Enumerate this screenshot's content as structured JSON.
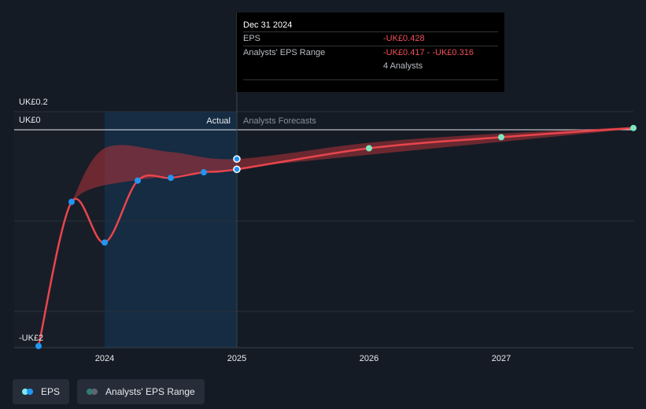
{
  "chart_data": {
    "type": "line",
    "y_tick_labels": [
      "UK£0.2",
      "UK£0",
      "-UK£2"
    ],
    "x_tick_labels": [
      "2024",
      "2025",
      "2026",
      "2027"
    ],
    "section_labels": {
      "actual": "Actual",
      "forecast": "Analysts Forecasts"
    },
    "eps_actual": [
      {
        "x": 2023.5,
        "y": -2.34
      },
      {
        "x": 2023.75,
        "y": -0.78
      },
      {
        "x": 2024.0,
        "y": -1.22
      },
      {
        "x": 2024.25,
        "y": -0.55
      },
      {
        "x": 2024.5,
        "y": -0.52
      },
      {
        "x": 2024.75,
        "y": -0.46
      },
      {
        "x": 2025.0,
        "y": -0.428
      }
    ],
    "eps_forecast": [
      {
        "x": 2025.0,
        "y": -0.428
      },
      {
        "x": 2026.0,
        "y": -0.2
      },
      {
        "x": 2027.0,
        "y": -0.08
      },
      {
        "x": 2028.0,
        "y": 0.02
      }
    ],
    "range_low": [
      {
        "x": 2023.75,
        "y": -0.78
      },
      {
        "x": 2024.0,
        "y": -0.6
      },
      {
        "x": 2025.0,
        "y": -0.417
      },
      {
        "x": 2026.0,
        "y": -0.27
      },
      {
        "x": 2027.0,
        "y": -0.13
      },
      {
        "x": 2028.0,
        "y": 0.01
      }
    ],
    "range_high": [
      {
        "x": 2024.0,
        "y": -0.2
      },
      {
        "x": 2024.5,
        "y": -0.24
      },
      {
        "x": 2025.0,
        "y": -0.316
      },
      {
        "x": 2026.0,
        "y": -0.14
      },
      {
        "x": 2027.0,
        "y": -0.04
      },
      {
        "x": 2028.0,
        "y": 0.03
      }
    ],
    "legend": [
      "EPS",
      "Analysts' EPS Range"
    ],
    "colors": {
      "eps_line": "#e8454d",
      "eps_point": "#2196f3",
      "forecast_point": "#7de8c0",
      "range_fill": "#b3333a",
      "actual_band": "#16334d"
    }
  },
  "tooltip": {
    "date": "Dec 31 2024",
    "eps_label": "EPS",
    "eps_value": "-UK£0.428",
    "range_label": "Analysts' EPS Range",
    "range_value": "-UK£0.417 - -UK£0.316",
    "analysts": "4 Analysts"
  }
}
